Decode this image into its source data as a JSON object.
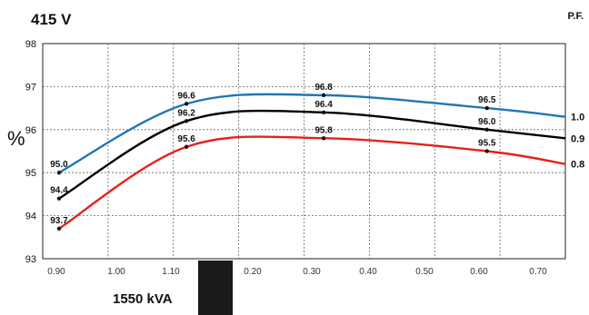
{
  "header": {
    "title": "415 V",
    "pf_label": "P.F."
  },
  "footer": {
    "rating": "1550 kVA"
  },
  "chart_data": {
    "type": "line",
    "title": "415 V",
    "xlabel": "",
    "ylabel": "%",
    "xlim": [
      0,
      8
    ],
    "ylim": [
      93,
      98
    ],
    "yticks": [
      93,
      94,
      95,
      96,
      97,
      98
    ],
    "grid": true,
    "x_tick_labels": [
      "0.90",
      "1.00",
      "1.10",
      "0.20",
      "0.30",
      "0.40",
      "0.50",
      "0.60",
      "0.70"
    ],
    "legend_placement": "right",
    "series": [
      {
        "name": "1.0",
        "color": "#1f77b4",
        "x": [
          0.25,
          2.2,
          4.3,
          6.8,
          8.0
        ],
        "y": [
          95.0,
          96.6,
          96.8,
          96.5,
          96.3
        ],
        "point_labels": [
          "95.0",
          "96.6",
          "96.8",
          "96.5",
          ""
        ]
      },
      {
        "name": "0.9",
        "color": "#000000",
        "x": [
          0.25,
          2.2,
          4.3,
          6.8,
          8.0
        ],
        "y": [
          94.4,
          96.2,
          96.4,
          96.0,
          95.8
        ],
        "point_labels": [
          "94.4",
          "96.2",
          "96.4",
          "96.0",
          ""
        ]
      },
      {
        "name": "0.8",
        "color": "#e8201a",
        "x": [
          0.25,
          2.2,
          4.3,
          6.8,
          8.0
        ],
        "y": [
          93.7,
          95.6,
          95.8,
          95.5,
          95.2
        ],
        "point_labels": [
          "93.7",
          "95.6",
          "95.8",
          "95.5",
          ""
        ]
      }
    ]
  }
}
